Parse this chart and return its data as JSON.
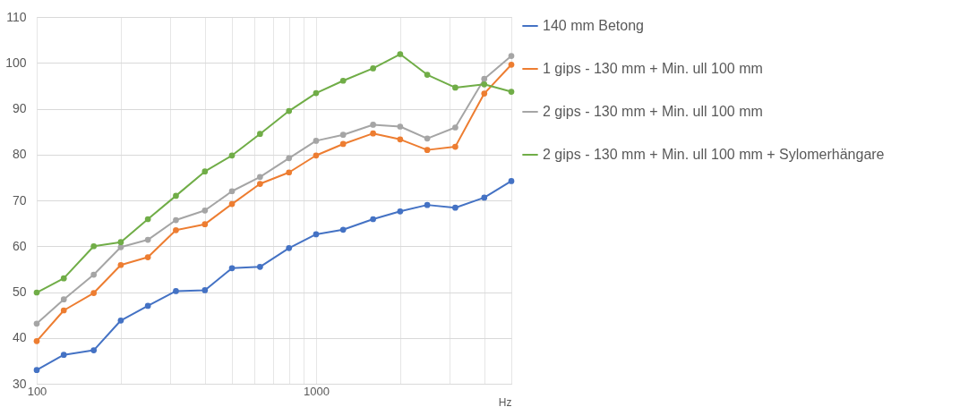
{
  "chart_data": {
    "type": "line",
    "x": [
      100,
      125,
      160,
      200,
      250,
      315,
      400,
      500,
      630,
      800,
      1000,
      1250,
      1600,
      2000,
      2500,
      3150,
      4000,
      5000
    ],
    "xlabel": "Hz",
    "xlim": [
      100,
      5000
    ],
    "xticks": [
      100,
      {
        "value": 200,
        "label": null
      },
      {
        "value": 300,
        "label": null
      },
      {
        "value": 400,
        "label": null
      },
      {
        "value": 500,
        "label": null
      },
      {
        "value": 600,
        "label": null
      },
      {
        "value": 700,
        "label": null
      },
      {
        "value": 800,
        "label": null
      },
      {
        "value": 900,
        "label": null
      },
      1000,
      {
        "value": 2000,
        "label": null
      },
      {
        "value": 3000,
        "label": null
      },
      {
        "value": 4000,
        "label": null
      },
      {
        "value": 5000,
        "label": null
      }
    ],
    "log": "x",
    "ylim": [
      30,
      110
    ],
    "yticks": [
      30,
      40,
      50,
      60,
      70,
      80,
      90,
      100,
      110
    ],
    "grid": true,
    "legend": "right",
    "marker": "circle",
    "line_style": "solid",
    "series": [
      {
        "name": "140 mm Betong",
        "color": "#4472c4",
        "values": [
          33.0,
          36.3,
          37.3,
          43.8,
          47.0,
          50.2,
          50.4,
          55.2,
          55.5,
          59.6,
          62.6,
          63.6,
          65.9,
          67.6,
          69.0,
          68.4,
          70.6,
          74.2
        ]
      },
      {
        "name": "1 gips - 130 mm + Min. ull 100 mm",
        "color": "#ed7d31",
        "values": [
          39.3,
          46.0,
          49.8,
          55.9,
          57.6,
          63.5,
          64.8,
          69.2,
          73.6,
          76.1,
          79.8,
          82.3,
          84.6,
          83.3,
          81.0,
          81.7,
          93.3,
          99.6
        ]
      },
      {
        "name": "2 gips - 130 mm + Min. ull 100 mm",
        "color": "#a5a5a5",
        "values": [
          43.1,
          48.4,
          53.8,
          59.8,
          61.4,
          65.7,
          67.8,
          72.0,
          75.1,
          79.2,
          83.0,
          84.3,
          86.5,
          86.1,
          83.5,
          85.9,
          96.5,
          101.5
        ]
      },
      {
        "name": "2 gips - 130 mm + Min. ull 100 mm + Sylomerhängare",
        "color": "#70ad47",
        "values": [
          49.9,
          53.0,
          60.0,
          60.9,
          65.9,
          71.0,
          76.3,
          79.8,
          84.5,
          89.5,
          93.4,
          96.1,
          98.8,
          101.9,
          97.4,
          94.6,
          95.3,
          93.7
        ]
      }
    ]
  }
}
